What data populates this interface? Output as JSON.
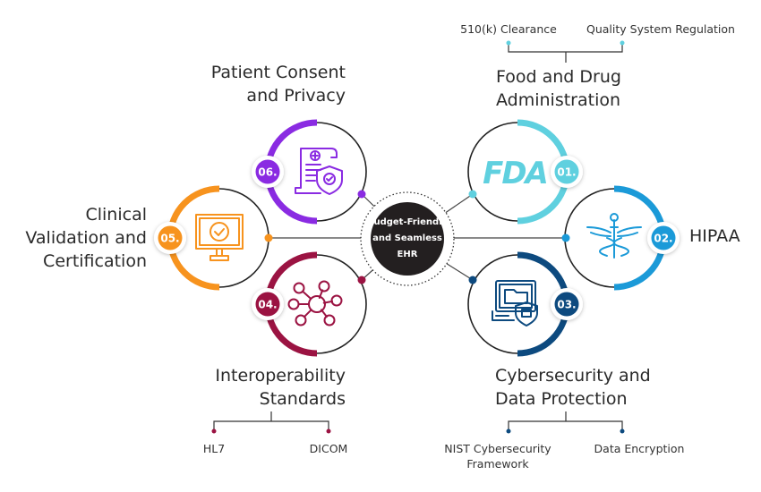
{
  "center": {
    "line1": "Budget-Friendly",
    "line2": "and Seamless",
    "line3": "EHR",
    "color": "#231f20"
  },
  "items": [
    {
      "number": "01.",
      "title_lines": [
        "Food and Drug",
        "Administration"
      ],
      "color": "#5fd0df",
      "icon": "fda-logo-icon",
      "icon_text": "FDA",
      "subitems": [
        "510(k) Clearance",
        "Quality System Regulation"
      ]
    },
    {
      "number": "02.",
      "title_lines": [
        "HIPAA"
      ],
      "color": "#1b9ad8",
      "icon": "caduceus-icon",
      "subitems": []
    },
    {
      "number": "03.",
      "title_lines": [
        "Cybersecurity and",
        "Data Protection"
      ],
      "color": "#0d4a7f",
      "icon": "secure-computer-icon",
      "subitems": [
        "NIST Cybersecurity Framework",
        "Data Encryption"
      ]
    },
    {
      "number": "04.",
      "title_lines": [
        "Interoperability",
        "Standards"
      ],
      "color": "#9b1342",
      "icon": "network-nodes-icon",
      "subitems": [
        "HL7",
        "DICOM"
      ]
    },
    {
      "number": "05.",
      "title_lines": [
        "Clinical",
        "Validation and",
        "Certification"
      ],
      "color": "#f7931e",
      "icon": "monitor-check-icon",
      "subitems": []
    },
    {
      "number": "06.",
      "title_lines": [
        "Patient Consent",
        "and Privacy"
      ],
      "color": "#8a2be2",
      "icon": "document-shield-icon",
      "subitems": []
    }
  ]
}
